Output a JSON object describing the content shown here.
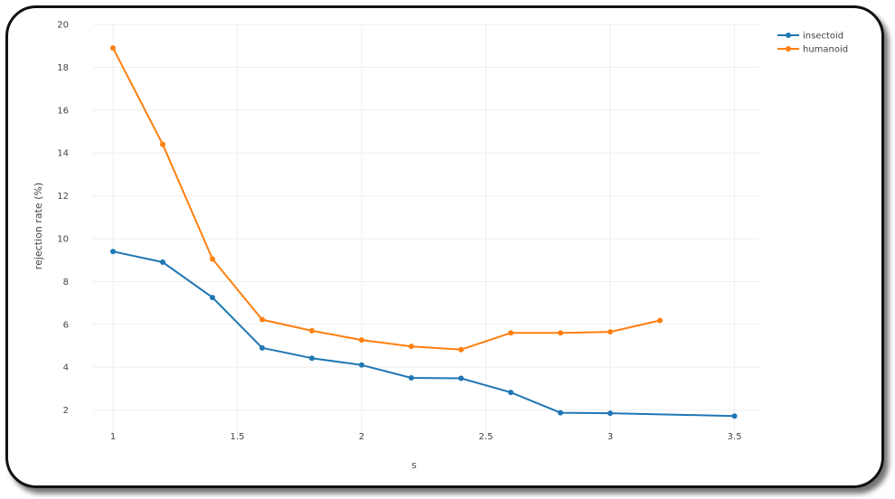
{
  "chart_data": {
    "type": "line",
    "title": "",
    "xlabel": "s",
    "ylabel": "rejection rate (%)",
    "xlim": [
      0.92,
      3.6
    ],
    "ylim": [
      0.8,
      20
    ],
    "x_ticks": [
      1,
      1.5,
      2,
      2.5,
      3,
      3.5
    ],
    "x_tick_labels": [
      "1",
      "1.5",
      "2",
      "2.5",
      "3",
      "3.5"
    ],
    "y_ticks": [
      2,
      4,
      6,
      8,
      10,
      12,
      14,
      16,
      18,
      20
    ],
    "y_tick_labels": [
      "2",
      "4",
      "6",
      "8",
      "10",
      "12",
      "14",
      "16",
      "18",
      "20"
    ],
    "grid": true,
    "legend_position": "top-right",
    "series": [
      {
        "name": "insectoid",
        "color": "#1f77b4",
        "x": [
          1,
          1.2,
          1.4,
          1.6,
          1.8,
          2,
          2.2,
          2.4,
          2.6,
          2.8,
          3,
          3.5
        ],
        "y": [
          9.4,
          8.9,
          7.25,
          4.9,
          4.42,
          4.1,
          3.5,
          3.48,
          2.82,
          1.87,
          1.85,
          1.72
        ]
      },
      {
        "name": "humanoid",
        "color": "#ff7f0e",
        "x": [
          1,
          1.2,
          1.4,
          1.6,
          1.8,
          2,
          2.2,
          2.4,
          2.6,
          2.8,
          3,
          3.2
        ],
        "y": [
          18.9,
          14.4,
          9.05,
          6.22,
          5.7,
          5.27,
          4.97,
          4.82,
          5.6,
          5.6,
          5.65,
          6.18
        ]
      }
    ]
  }
}
